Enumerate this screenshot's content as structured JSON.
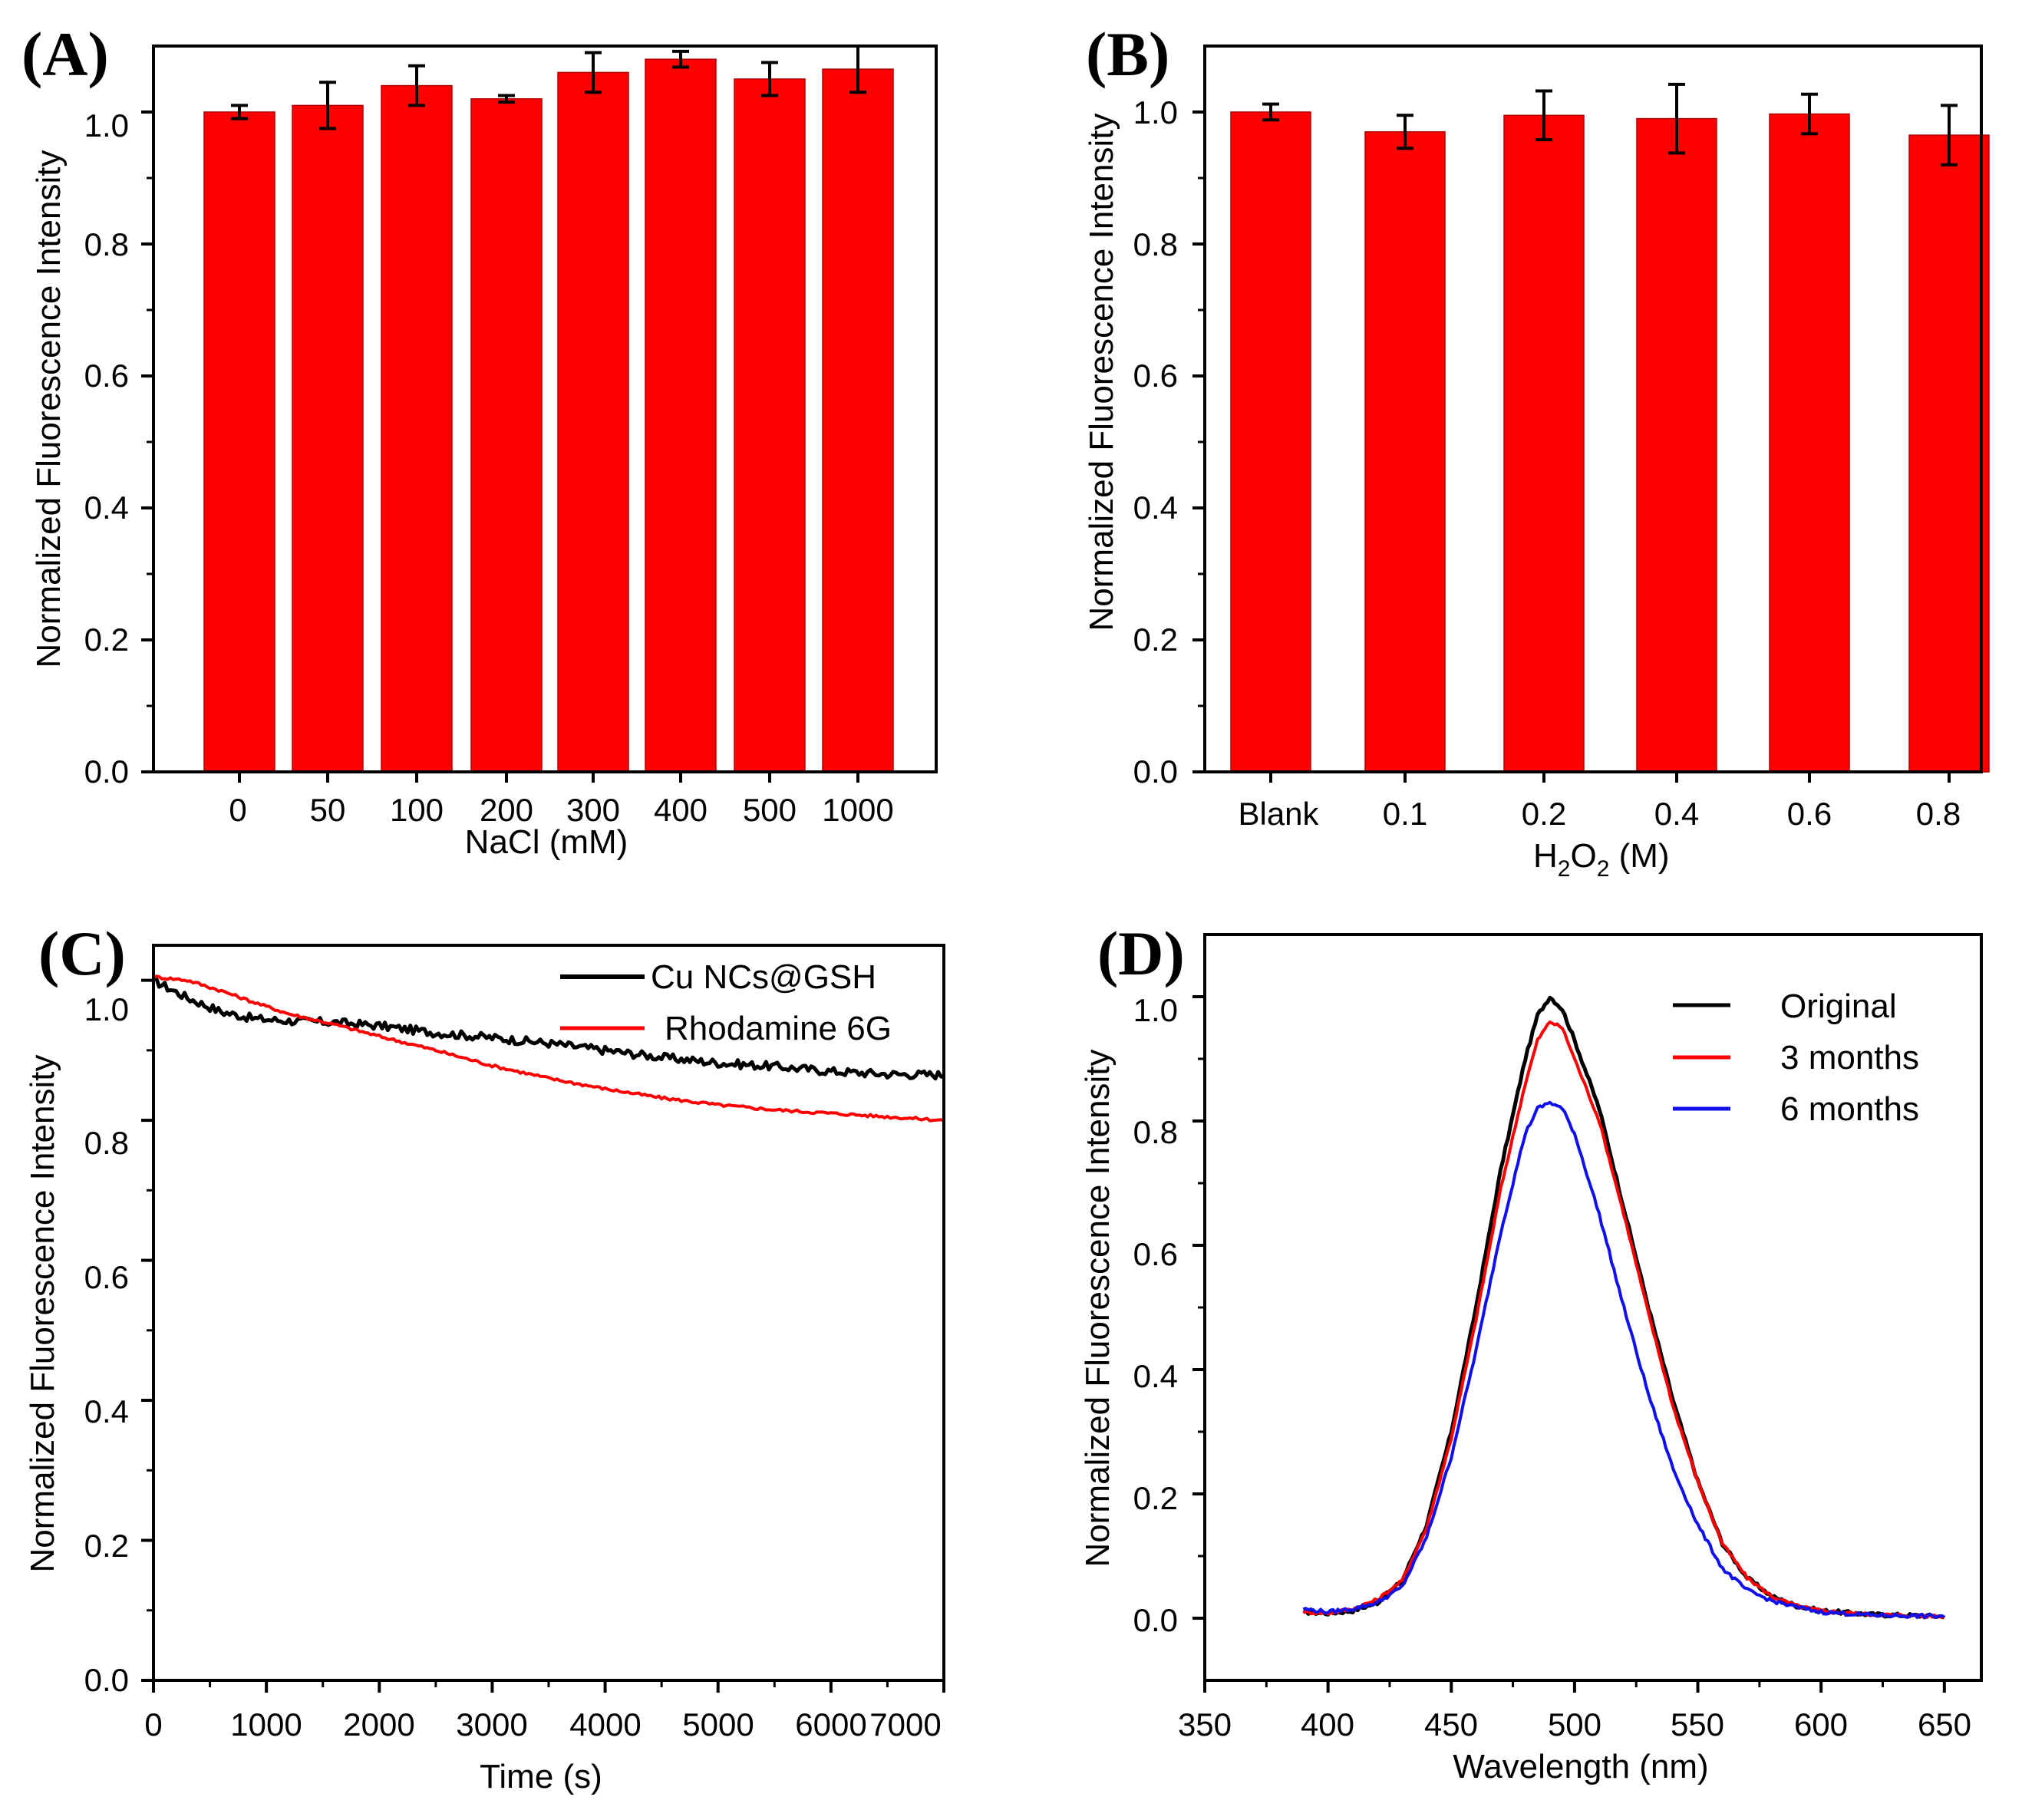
{
  "colors": {
    "bar": "#ff0000",
    "black": "#000000",
    "red": "#ff0000",
    "blue": "#1010ee"
  },
  "chart_data": [
    {
      "panel": "(A)",
      "type": "bar",
      "xlabel": "NaCl (mM)",
      "ylabel": "Normalized Fluorescence Intensity",
      "ylim": [
        0.0,
        1.1
      ],
      "yticks": [
        "0.0",
        "0.2",
        "0.4",
        "0.6",
        "0.8",
        "1.0"
      ],
      "categories": [
        "0",
        "50",
        "100",
        "200",
        "300",
        "400",
        "500",
        "1000"
      ],
      "values": [
        1.0,
        1.01,
        1.04,
        1.02,
        1.06,
        1.08,
        1.05,
        1.065
      ],
      "errors": [
        0.01,
        0.035,
        0.03,
        0.005,
        0.03,
        0.012,
        0.025,
        0.035
      ]
    },
    {
      "panel": "(B)",
      "type": "bar",
      "xlabel_main": "H",
      "xlabel_sub1": "2",
      "xlabel_mid": "O",
      "xlabel_sub2": "2",
      "xlabel_unit": " (M)",
      "ylabel": "Normalized Fluorescence Intensity",
      "ylim": [
        0.0,
        1.1
      ],
      "yticks": [
        "0.0",
        "0.2",
        "0.4",
        "0.6",
        "0.8",
        "1.0"
      ],
      "categories": [
        "Blank",
        "0.1",
        "0.2",
        "0.4",
        "0.6",
        "0.8"
      ],
      "values": [
        1.0,
        0.97,
        0.995,
        0.99,
        0.997,
        0.965
      ],
      "errors": [
        0.012,
        0.025,
        0.037,
        0.052,
        0.03,
        0.045
      ]
    },
    {
      "panel": "(C)",
      "type": "line",
      "xlabel": "Time (s)",
      "ylabel": "Normalized Fluorescence Intensity",
      "xlim": [
        0,
        7000
      ],
      "ylim": [
        0.0,
        1.05
      ],
      "xticks": [
        "0",
        "1000",
        "2000",
        "3000",
        "4000",
        "5000",
        "6000",
        "7000"
      ],
      "yticks": [
        "0.0",
        "0.2",
        "0.4",
        "0.6",
        "0.8",
        "1.0"
      ],
      "legend": [
        "Cu NCs@GSH",
        "Rhodamine 6G"
      ],
      "series": [
        {
          "name": "Cu NCs@GSH",
          "color": "black",
          "x": [
            0,
            300,
            600,
            900,
            1200,
            1600,
            2000,
            2500,
            3000,
            3500,
            4000,
            4500,
            5000,
            5500,
            6000,
            6500,
            7000
          ],
          "y": [
            1.0,
            0.975,
            0.955,
            0.945,
            0.942,
            0.94,
            0.935,
            0.925,
            0.918,
            0.91,
            0.9,
            0.89,
            0.882,
            0.877,
            0.87,
            0.866,
            0.865
          ]
        },
        {
          "name": "Rhodamine 6G",
          "color": "red",
          "x": [
            0,
            300,
            600,
            900,
            1200,
            1600,
            2000,
            2500,
            3000,
            3500,
            4000,
            4500,
            5000,
            5500,
            6000,
            6500,
            7000
          ],
          "y": [
            1.005,
            1.0,
            0.985,
            0.968,
            0.952,
            0.937,
            0.92,
            0.9,
            0.878,
            0.86,
            0.845,
            0.832,
            0.822,
            0.815,
            0.81,
            0.805,
            0.8
          ]
        }
      ]
    },
    {
      "panel": "(D)",
      "type": "line",
      "xlabel": "Wavelength (nm)",
      "ylabel": "Normalized Fluorescence Intensity",
      "xlim": [
        350,
        665
      ],
      "ylim": [
        -0.1,
        1.1
      ],
      "xticks": [
        "350",
        "400",
        "450",
        "500",
        "550",
        "600",
        "650"
      ],
      "yticks": [
        "0.0",
        "0.2",
        "0.4",
        "0.6",
        "0.8",
        "1.0"
      ],
      "legend": [
        "Original",
        "3 months",
        "6 months"
      ],
      "series": [
        {
          "name": "Original",
          "color": "black",
          "x": [
            390,
            400,
            410,
            420,
            430,
            440,
            450,
            460,
            470,
            480,
            485,
            490,
            495,
            500,
            510,
            520,
            530,
            540,
            550,
            560,
            570,
            580,
            590,
            600,
            620,
            650
          ],
          "y": [
            0.01,
            0.008,
            0.012,
            0.025,
            0.06,
            0.15,
            0.3,
            0.5,
            0.72,
            0.9,
            0.97,
            1.0,
            0.98,
            0.93,
            0.82,
            0.66,
            0.5,
            0.35,
            0.22,
            0.12,
            0.065,
            0.035,
            0.02,
            0.012,
            0.006,
            0.003
          ]
        },
        {
          "name": "3 months",
          "color": "red",
          "x": [
            390,
            400,
            410,
            420,
            430,
            440,
            450,
            460,
            470,
            480,
            485,
            490,
            495,
            500,
            510,
            520,
            530,
            540,
            550,
            560,
            570,
            580,
            590,
            600,
            620,
            650
          ],
          "y": [
            0.01,
            0.008,
            0.015,
            0.03,
            0.06,
            0.145,
            0.29,
            0.48,
            0.69,
            0.86,
            0.93,
            0.96,
            0.95,
            0.9,
            0.8,
            0.65,
            0.49,
            0.34,
            0.22,
            0.12,
            0.065,
            0.035,
            0.02,
            0.012,
            0.006,
            0.003
          ]
        },
        {
          "name": "6 months",
          "color": "blue",
          "x": [
            390,
            400,
            410,
            420,
            430,
            440,
            450,
            460,
            470,
            480,
            485,
            490,
            495,
            500,
            510,
            520,
            530,
            540,
            550,
            560,
            570,
            580,
            590,
            600,
            620,
            650
          ],
          "y": [
            0.015,
            0.01,
            0.015,
            0.025,
            0.05,
            0.13,
            0.26,
            0.43,
            0.62,
            0.78,
            0.82,
            0.83,
            0.82,
            0.78,
            0.65,
            0.5,
            0.36,
            0.24,
            0.15,
            0.08,
            0.045,
            0.028,
            0.018,
            0.01,
            0.005,
            0.003
          ]
        }
      ]
    }
  ]
}
